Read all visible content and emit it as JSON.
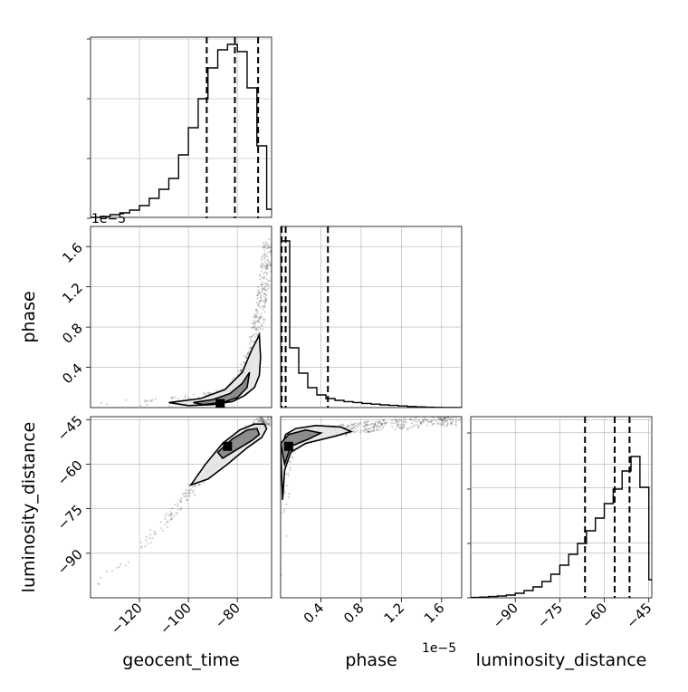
{
  "chart_data": {
    "type": "corner",
    "parameters": [
      "geocent_time",
      "phase",
      "luminosity_distance"
    ],
    "axis_labels": {
      "x": [
        "geocent_time",
        "phase",
        "luminosity_distance"
      ],
      "y": [
        "",
        "phase",
        "luminosity_distance"
      ]
    },
    "offset_label": "1e−5",
    "ranges": {
      "geocent_time": [
        -140,
        -66
      ],
      "phase": [
        0.0,
        1.8
      ],
      "luminosity_distance": [
        -105,
        -44
      ]
    },
    "ticks": {
      "geocent_time": [
        -120,
        -100,
        -80
      ],
      "phase": [
        0.4,
        0.8,
        1.2,
        1.6
      ],
      "luminosity_distance": [
        -90,
        -75,
        -60,
        -45
      ]
    },
    "tick_labels": {
      "geocent_time": [
        "−120",
        "−100",
        "−80"
      ],
      "phase": [
        "0.4",
        "0.8",
        "1.2",
        "1.6"
      ],
      "luminosity_distance_x": [
        "−90",
        "−75",
        "−60",
        "−45"
      ],
      "luminosity_distance_y": [
        "−45",
        "−60",
        "−75",
        "−90"
      ]
    },
    "grid": true,
    "histograms": [
      {
        "parameter": "geocent_time",
        "edges": [
          -140,
          -136,
          -132,
          -128,
          -124,
          -120,
          -116,
          -112,
          -108,
          -104,
          -100,
          -96,
          -92,
          -88,
          -84,
          -80,
          -76,
          -72,
          -68,
          -64
        ],
        "counts": [
          0.005,
          0.01,
          0.02,
          0.03,
          0.045,
          0.07,
          0.11,
          0.16,
          0.22,
          0.35,
          0.5,
          0.66,
          0.83,
          0.93,
          0.96,
          0.92,
          0.72,
          0.4,
          0.05
        ],
        "quantiles": [
          -92.5,
          -81,
          -71.5
        ]
      },
      {
        "parameter": "phase",
        "edges": [
          0.0,
          0.09,
          0.18,
          0.27,
          0.36,
          0.45,
          0.54,
          0.63,
          0.72,
          0.81,
          0.9,
          0.99,
          1.08,
          1.17,
          1.26,
          1.35,
          1.44,
          1.53,
          1.62,
          1.71,
          1.8
        ],
        "counts": [
          0.92,
          0.33,
          0.19,
          0.11,
          0.07,
          0.05,
          0.04,
          0.033,
          0.028,
          0.023,
          0.019,
          0.015,
          0.012,
          0.009,
          0.006,
          0.004,
          0.002,
          0.001,
          0.0,
          0.0
        ],
        "quantiles": [
          0.01,
          0.05,
          0.47
        ]
      },
      {
        "parameter": "luminosity_distance",
        "edges": [
          -105,
          -102,
          -99,
          -96,
          -93,
          -90,
          -87,
          -84,
          -81,
          -78,
          -75,
          -72,
          -69,
          -66,
          -63,
          -60,
          -57,
          -54,
          -51,
          -48,
          -45,
          -44
        ],
        "counts": [
          0.002,
          0.004,
          0.007,
          0.01,
          0.015,
          0.025,
          0.04,
          0.06,
          0.09,
          0.13,
          0.18,
          0.24,
          0.3,
          0.37,
          0.44,
          0.52,
          0.6,
          0.7,
          0.78,
          0.61,
          0.1
        ],
        "quantiles": [
          -66.5,
          -56.5,
          -51.5
        ]
      }
    ],
    "pairs": [
      {
        "x": "geocent_time",
        "y": "phase",
        "trend_x": [
          -140,
          -110,
          -95,
          -85,
          -78,
          -74,
          -71,
          -69,
          -67
        ],
        "trend_y": [
          0.02,
          0.04,
          0.08,
          0.14,
          0.28,
          0.55,
          0.9,
          1.25,
          1.7
        ],
        "contour_outer_x": [
          -108,
          -95,
          -85,
          -78,
          -74,
          -71,
          -70.5,
          -71,
          -73,
          -77,
          -82,
          -90,
          -100,
          -108
        ],
        "contour_outer_y": [
          0.05,
          0.09,
          0.18,
          0.35,
          0.58,
          0.72,
          0.5,
          0.32,
          0.2,
          0.12,
          0.06,
          0.03,
          0.02,
          0.05
        ],
        "contour_inner_x": [
          -98,
          -90,
          -83,
          -78,
          -75,
          -76,
          -80,
          -86,
          -94,
          -98
        ],
        "contour_inner_y": [
          0.05,
          0.08,
          0.14,
          0.24,
          0.35,
          0.2,
          0.1,
          0.05,
          0.03,
          0.05
        ],
        "peak": [
          -87,
          0.04
        ]
      },
      {
        "x": "geocent_time",
        "y": "luminosity_distance",
        "trend_x": [
          -140,
          -125,
          -110,
          -100,
          -92,
          -85,
          -78,
          -72,
          -67
        ],
        "trend_y": [
          -102,
          -92,
          -80,
          -70,
          -62,
          -56,
          -51,
          -47,
          -45
        ],
        "contour_outer_x": [
          -99,
          -93,
          -86,
          -79,
          -73,
          -69,
          -68,
          -70,
          -76,
          -84,
          -92,
          -99
        ],
        "contour_outer_y": [
          -67,
          -60,
          -53,
          -48.5,
          -46.5,
          -46.5,
          -48,
          -51,
          -54.5,
          -60,
          -65,
          -67
        ],
        "contour_inner_x": [
          -88,
          -82,
          -76,
          -72,
          -71,
          -74,
          -80,
          -86,
          -88
        ],
        "contour_inner_y": [
          -56,
          -51.5,
          -48.5,
          -48,
          -50,
          -52,
          -55,
          -58,
          -56
        ],
        "peak": [
          -84,
          -54
        ]
      },
      {
        "x": "phase",
        "y": "luminosity_distance",
        "trend_x": [
          0.0,
          0.02,
          0.05,
          0.15,
          0.4,
          0.7,
          1.0,
          1.4,
          1.8
        ],
        "trend_y": [
          -100,
          -75,
          -58,
          -52,
          -49.5,
          -48,
          -47,
          -46,
          -45
        ],
        "contour_outer_x": [
          0.0,
          0.05,
          0.15,
          0.35,
          0.6,
          0.7,
          0.55,
          0.25,
          0.1,
          0.04,
          0.02,
          0.0
        ],
        "contour_outer_y": [
          -55,
          -50,
          -48,
          -47,
          -47.5,
          -49,
          -50.5,
          -53,
          -56,
          -62,
          -72,
          -55
        ],
        "contour_inner_x": [
          0.0,
          0.08,
          0.25,
          0.4,
          0.28,
          0.1,
          0.04,
          0.0
        ],
        "contour_inner_y": [
          -53,
          -50,
          -48.5,
          -49.5,
          -51.5,
          -54,
          -60,
          -53
        ],
        "peak": [
          0.08,
          -54
        ]
      }
    ]
  }
}
